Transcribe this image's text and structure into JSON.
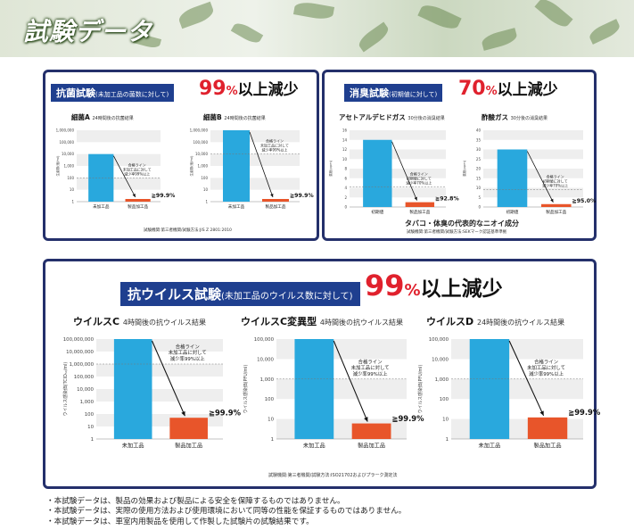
{
  "header": {
    "title": "試験データ"
  },
  "panels": {
    "antibacterial": {
      "title": "抗菌試験",
      "title_sub": "(未加工品の菌数に対して)",
      "claim_num": "99",
      "claim_pct": "%",
      "claim_rest": "以上減少",
      "note": "試験機関:第三者機関/試験方法:JIS Z 2801:2010"
    },
    "deodorant": {
      "title": "消臭試験",
      "title_sub": "(初期値に対して)",
      "claim_num": "70",
      "claim_pct": "%",
      "claim_rest": "以上減少",
      "caption": "タバコ・体臭の代表的なニオイ成分",
      "note": "試験機関:第三者機関/試験方法:SEKマーク認証基準準拠"
    },
    "antiviral": {
      "title": "抗ウイルス試験",
      "title_sub": "(未加工品のウイルス数に対して)",
      "claim_num": "99",
      "claim_pct": "%",
      "claim_rest": "以上減少",
      "note": "試験機関:第三者機関/試験方法:ISO21702およびプラーク測定法"
    }
  },
  "chart_data": [
    {
      "type": "bar",
      "group": "antibacterial",
      "label_main": "細菌A",
      "label_sub": "24時間後の抗菌結果",
      "categories": [
        "未加工品",
        "製品加工品"
      ],
      "values": [
        10000,
        1
      ],
      "ylabel": "生菌数(個/ml)",
      "yticks": [
        "1,000,000",
        "100,000",
        "10,000",
        "1,000",
        "100",
        "10",
        "1"
      ],
      "scale": "log",
      "pass_line_text": [
        "合格ライン",
        "未加工品に対して",
        "減少率99%以上"
      ],
      "result": "≧99.9%"
    },
    {
      "type": "bar",
      "group": "antibacterial",
      "label_main": "細菌B",
      "label_sub": "24時間後の抗菌結果",
      "categories": [
        "未加工品",
        "製品加工品"
      ],
      "values": [
        1000000,
        1
      ],
      "ylabel": "生菌数(個/ml)",
      "yticks": [
        "1,000,000",
        "100,000",
        "10,000",
        "1,000",
        "100",
        "10",
        "1"
      ],
      "scale": "log",
      "pass_line_text": [
        "合格ライン",
        "未加工品に対して",
        "減少率99%以上"
      ],
      "result": "≧99.9%"
    },
    {
      "type": "bar",
      "group": "deodorant",
      "label_main": "アセトアルデヒドガス",
      "label_sub": "30分後の消臭結果",
      "categories": [
        "初期値",
        "製品加工品"
      ],
      "values": [
        14,
        1
      ],
      "ylabel": "濃度(ppm)",
      "yticks": [
        "16",
        "14",
        "12",
        "10",
        "8",
        "6",
        "4",
        "2",
        "0"
      ],
      "scale": "linear",
      "ymax": 16,
      "pass_line_text": [
        "合格ライン",
        "初期値に対して",
        "減少率70%以上"
      ],
      "result": "≧92.8%"
    },
    {
      "type": "bar",
      "group": "deodorant",
      "label_main": "酢酸ガス",
      "label_sub": "30分後の消臭結果",
      "categories": [
        "初期値",
        "製品加工品"
      ],
      "values": [
        30,
        1.5
      ],
      "ylabel": "濃度(ppm)",
      "yticks": [
        "40",
        "35",
        "30",
        "25",
        "20",
        "15",
        "10",
        "5",
        "0"
      ],
      "scale": "linear",
      "ymax": 40,
      "pass_line_text": [
        "合格ライン",
        "初期値に対して",
        "減少率70%以上"
      ],
      "result": "≧95.0%"
    },
    {
      "type": "bar",
      "group": "antiviral",
      "label_main": "ウイルスC",
      "label_sub": "4時間後の抗ウイルス結果",
      "categories": [
        "未加工品",
        "製品加工品"
      ],
      "values": [
        100000000,
        50
      ],
      "ylabel": "ウイルス感染価(TCID₅₀/ml)",
      "yticks": [
        "100,000,000",
        "10,000,000",
        "1,000,000",
        "100,000",
        "10,000",
        "1,000",
        "100",
        "10",
        "1"
      ],
      "scale": "log",
      "pass_line_text": [
        "合格ライン",
        "未加工品に対して",
        "減少率99%以上"
      ],
      "result": "≧99.9%"
    },
    {
      "type": "bar",
      "group": "antiviral",
      "label_main": "ウイルスC変異型",
      "label_sub": "4時間後の抗ウイルス結果",
      "categories": [
        "未加工品",
        "製品加工品"
      ],
      "values": [
        100000,
        6
      ],
      "ylabel": "ウイルス感染価(PFU/ml)",
      "yticks": [
        "100,000",
        "10,000",
        "1,000",
        "100",
        "10",
        "1"
      ],
      "scale": "log",
      "pass_line_text": [
        "合格ライン",
        "未加工品に対して",
        "減少率99%以上"
      ],
      "result": "≧99.9%"
    },
    {
      "type": "bar",
      "group": "antiviral",
      "label_main": "ウイルスD",
      "label_sub": "24時間後の抗ウイルス結果",
      "categories": [
        "未加工品",
        "製品加工品"
      ],
      "values": [
        100000,
        12
      ],
      "ylabel": "ウイルス感染価(PFU/ml)",
      "yticks": [
        "100,000",
        "10,000",
        "1,000",
        "100",
        "10",
        "1"
      ],
      "scale": "log",
      "pass_line_text": [
        "合格ライン",
        "未加工品に対して",
        "減少率99%以上"
      ],
      "result": "≧99.9%"
    }
  ],
  "colors": {
    "bar_untreated": "#29a8dd",
    "bar_treated": "#e8552a",
    "accent_red": "#e0212d",
    "title_blue": "#1f3f8f",
    "border": "#24306b"
  },
  "footnotes": [
    "・本試験データは、製品の効果および製品による安全を保障するものではありません。",
    "・本試験データは、実際の使用方法および使用環境において同等の性能を保証するものではありません。",
    "・本試験データは、車室内用製品を使用して作製した試験片の試験結果です。"
  ]
}
